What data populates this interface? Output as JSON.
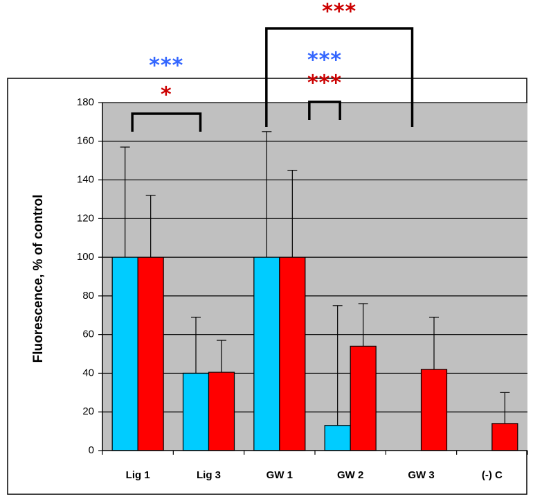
{
  "chart_data": {
    "type": "bar",
    "ylabel": "Fluorescence, % of control",
    "ylim": [
      0,
      180
    ],
    "yticks": [
      "0",
      "20",
      "40",
      "60",
      "80",
      "100",
      "120",
      "140",
      "160",
      "180"
    ],
    "grid": true,
    "plot_background": "#c0c0c0",
    "categories": [
      "Lig 1",
      "Lig 3",
      "GW 1",
      "GW 2",
      "GW 3",
      "(-) C"
    ],
    "series": [
      {
        "color": "#00ccff",
        "values": [
          100,
          40,
          100,
          13,
          null,
          null
        ],
        "error_upper": [
          157,
          69,
          165,
          75,
          null,
          null
        ]
      },
      {
        "color": "#ff0000",
        "values": [
          100,
          40.5,
          100,
          54,
          42,
          14
        ],
        "error_upper": [
          132,
          57,
          145,
          76,
          69,
          30
        ]
      }
    ],
    "significance": [
      {
        "from": "Lig 1",
        "to": "Lig 3",
        "labels": [
          {
            "text": "***",
            "color": "#3366ff"
          },
          {
            "text": "*",
            "color": "#cc0000"
          }
        ]
      },
      {
        "from": "GW 1",
        "to": "GW 3",
        "labels": [
          {
            "text": "***",
            "color": "#cc0000"
          }
        ]
      },
      {
        "from": "GW 1",
        "to": "GW 2",
        "labels": [
          {
            "text": "***",
            "color": "#3366ff"
          },
          {
            "text": "***",
            "color": "#cc0000"
          }
        ]
      }
    ]
  }
}
